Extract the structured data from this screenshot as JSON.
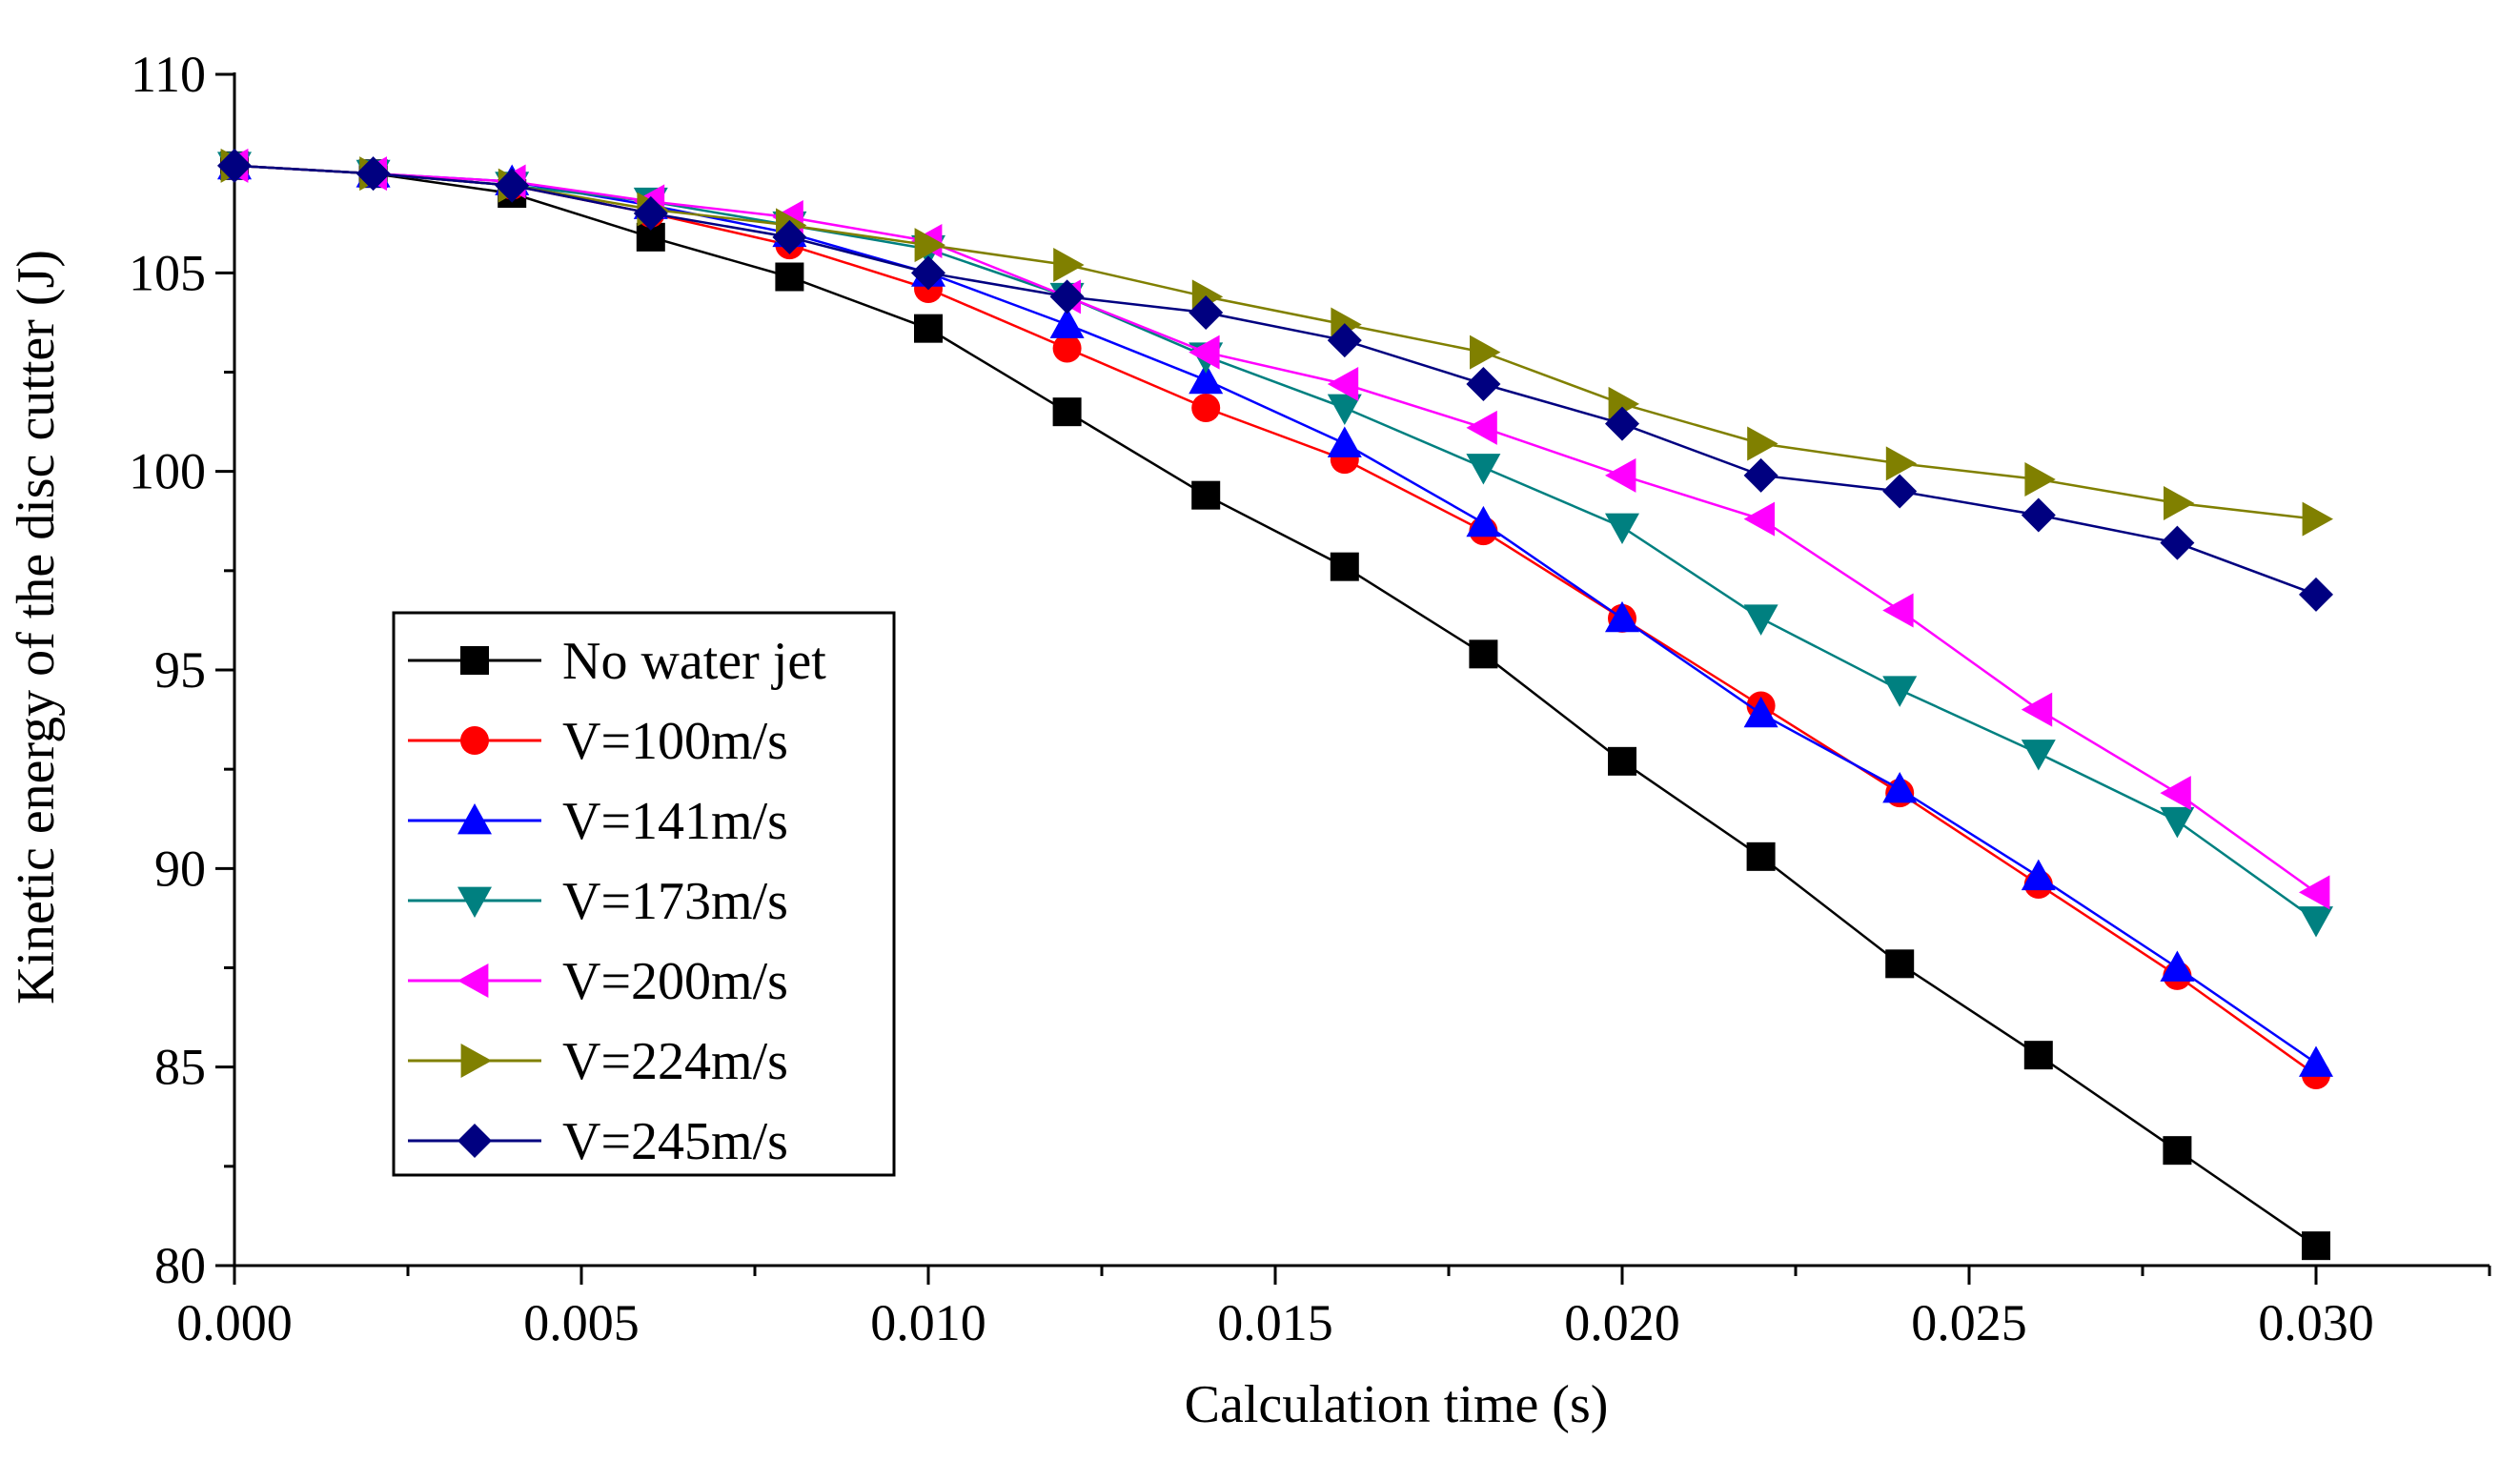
{
  "chart_data": {
    "type": "line",
    "xlabel": "Calculation time (s)",
    "ylabel": "Kinetic energy of the disc cutter (J)",
    "xlim": [
      0,
      0.0325
    ],
    "ylim": [
      80,
      110
    ],
    "xticks": [
      0.0,
      0.005,
      0.01,
      0.015,
      0.02,
      0.025,
      0.03
    ],
    "xtick_labels": [
      "0.000",
      "0.005",
      "0.010",
      "0.015",
      "0.020",
      "0.025",
      "0.030"
    ],
    "yticks": [
      80,
      85,
      90,
      95,
      100,
      105,
      110
    ],
    "ytick_labels": [
      "80",
      "85",
      "90",
      "95",
      "100",
      "105",
      "110"
    ],
    "legend_position": "lower-left",
    "x": [
      0.0,
      0.002,
      0.004,
      0.006,
      0.008,
      0.01,
      0.012,
      0.014,
      0.016,
      0.018,
      0.02,
      0.022,
      0.024,
      0.026,
      0.028,
      0.03
    ],
    "series": [
      {
        "name": "No water jet",
        "color": "#000000",
        "marker": "square",
        "values": [
          107.7,
          107.5,
          107.0,
          105.9,
          104.9,
          103.6,
          101.5,
          99.4,
          97.6,
          95.4,
          92.7,
          90.3,
          87.6,
          85.3,
          82.9,
          80.5
        ]
      },
      {
        "name": "V=100m/s",
        "color": "#ff0000",
        "marker": "circle",
        "values": [
          107.7,
          107.5,
          107.2,
          106.5,
          105.7,
          104.6,
          103.1,
          101.6,
          100.3,
          98.5,
          96.3,
          94.1,
          91.9,
          89.6,
          87.3,
          84.8
        ]
      },
      {
        "name": "V=141m/s",
        "color": "#0000ff",
        "marker": "triangle-up",
        "values": [
          107.7,
          107.5,
          107.3,
          106.7,
          106.0,
          105.0,
          103.7,
          102.3,
          100.7,
          98.7,
          96.3,
          93.9,
          92.0,
          89.8,
          87.5,
          85.1
        ]
      },
      {
        "name": "V=173m/s",
        "color": "#008080",
        "marker": "triangle-down",
        "values": [
          107.7,
          107.5,
          107.2,
          106.8,
          106.2,
          105.6,
          104.4,
          102.9,
          101.6,
          100.1,
          98.6,
          96.3,
          94.5,
          92.9,
          91.2,
          88.7
        ]
      },
      {
        "name": "V=200m/s",
        "color": "#ff00ff",
        "marker": "triangle-left",
        "values": [
          107.7,
          107.5,
          107.3,
          106.8,
          106.4,
          105.8,
          104.4,
          103.0,
          102.2,
          101.1,
          99.9,
          98.8,
          96.5,
          94.0,
          91.9,
          89.4
        ]
      },
      {
        "name": "V=224m/s",
        "color": "#808000",
        "marker": "triangle-right",
        "values": [
          107.7,
          107.5,
          107.2,
          106.6,
          106.2,
          105.7,
          105.2,
          104.4,
          103.7,
          103.0,
          101.7,
          100.7,
          100.2,
          99.8,
          99.2,
          98.8
        ]
      },
      {
        "name": "V=245m/s",
        "color": "#000080",
        "marker": "diamond",
        "values": [
          107.7,
          107.5,
          107.2,
          106.5,
          105.9,
          105.0,
          104.4,
          104.0,
          103.3,
          102.2,
          101.2,
          99.9,
          99.5,
          98.9,
          98.2,
          96.9
        ]
      }
    ]
  }
}
